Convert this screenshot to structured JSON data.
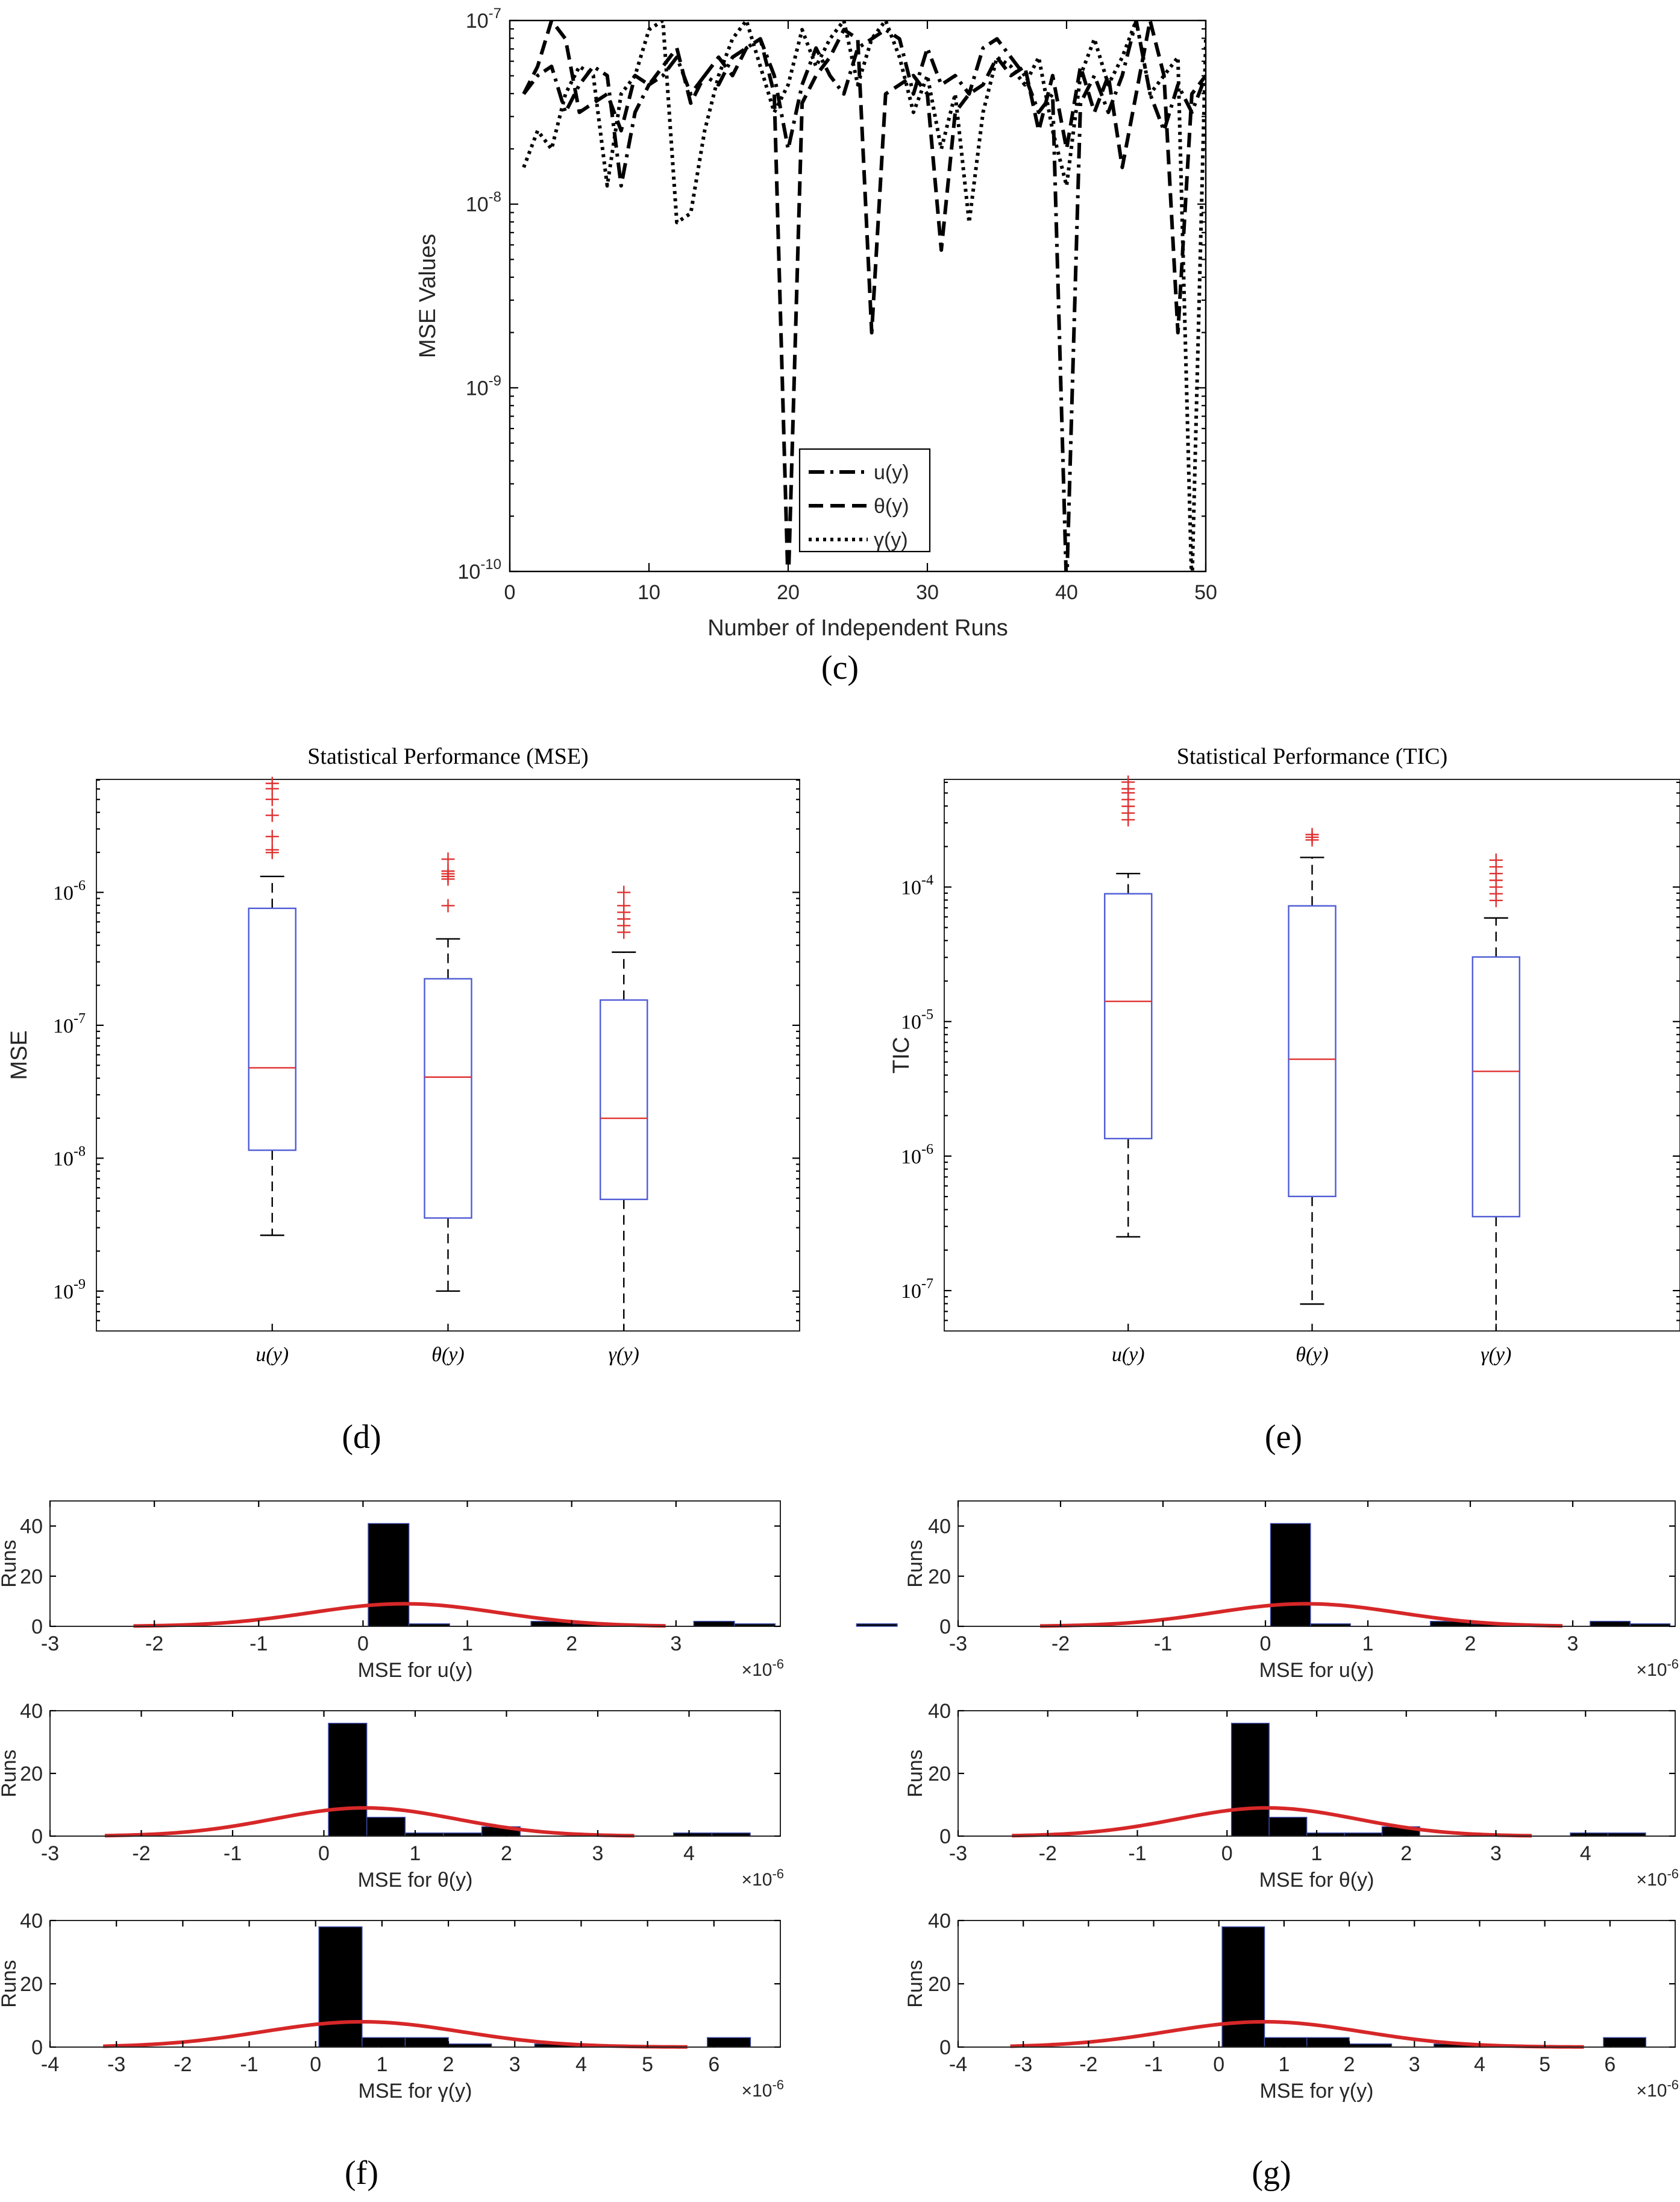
{
  "captions": {
    "c": "(c)",
    "d": "(d)",
    "e": "(e)",
    "f": "(f)",
    "g": "(g)"
  },
  "colors": {
    "box": "#4f5bd5",
    "median": "#e03030",
    "outlier": "#e03030",
    "fit": "#d62728",
    "bar": "#000000",
    "line": "#000000"
  },
  "chart_data": [
    {
      "id": "c",
      "type": "line",
      "xlabel": "Number of Independent Runs",
      "ylabel": "MSE Values",
      "xlim": [
        0,
        50
      ],
      "ylim_log10": [
        -10,
        -7
      ],
      "xticks": [
        0,
        10,
        20,
        30,
        40,
        50
      ],
      "ytick_labels": [
        "10-10",
        "10-9",
        "10-8",
        "10-7"
      ],
      "legend_position": "lower-middle",
      "series": [
        {
          "name": "u(y)",
          "style": "dashdot",
          "log10_values": [
            -7.4,
            -7.3,
            -7.25,
            -7.5,
            -7.35,
            -7.25,
            -7.3,
            -7.9,
            -7.5,
            -7.35,
            -7.3,
            -7.2,
            -7.4,
            -7.3,
            -7.35,
            -7.2,
            -7.15,
            -7.1,
            -7.3,
            -7.7,
            -7.35,
            -7.15,
            -7.3,
            -7.4,
            -7.15,
            -7.1,
            -7.05,
            -7.1,
            -7.4,
            -7.15,
            -7.35,
            -7.3,
            -7.4,
            -7.15,
            -7.1,
            -7.2,
            -7.3,
            -7.5,
            -7.4,
            -10.1,
            -7.45,
            -7.3,
            -7.5,
            -7.3,
            -7.0,
            -7.4,
            -7.6,
            -7.35,
            -7.5,
            -7.3
          ]
        },
        {
          "name": "θ(y)",
          "style": "dash",
          "log10_values": [
            -7.4,
            -7.25,
            -7.0,
            -7.1,
            -7.5,
            -7.45,
            -7.4,
            -7.6,
            -7.3,
            -7.35,
            -7.25,
            -7.15,
            -7.45,
            -7.3,
            -7.2,
            -7.3,
            -7.15,
            -7.1,
            -7.4,
            -10.1,
            -7.45,
            -7.3,
            -7.2,
            -7.05,
            -7.1,
            -8.7,
            -7.4,
            -7.35,
            -7.3,
            -7.4,
            -8.25,
            -7.5,
            -7.4,
            -7.35,
            -7.2,
            -7.3,
            -7.25,
            -7.6,
            -7.3,
            -7.7,
            -7.25,
            -7.5,
            -7.3,
            -7.8,
            -7.4,
            -7.0,
            -7.3,
            -8.7,
            -7.4,
            -7.3
          ]
        },
        {
          "name": "γ(y)",
          "style": "dot",
          "log10_values": [
            -7.8,
            -7.6,
            -7.7,
            -7.4,
            -7.25,
            -7.3,
            -7.9,
            -7.4,
            -7.3,
            -7.05,
            -7.0,
            -8.1,
            -8.05,
            -7.6,
            -7.3,
            -7.1,
            -7.0,
            -7.25,
            -7.5,
            -7.35,
            -7.05,
            -7.25,
            -7.1,
            -7.0,
            -7.35,
            -7.1,
            -7.0,
            -7.2,
            -7.5,
            -7.3,
            -7.7,
            -7.4,
            -8.1,
            -7.5,
            -7.2,
            -7.25,
            -7.35,
            -7.2,
            -7.6,
            -7.9,
            -7.3,
            -7.1,
            -7.35,
            -7.2,
            -7.0,
            -7.4,
            -7.3,
            -7.2,
            -10.1,
            -7.1
          ]
        }
      ]
    },
    {
      "id": "d",
      "type": "box",
      "title": "Statistical Performance (MSE)",
      "ylabel": "MSE",
      "ylim_log10": [
        -9.3,
        -5.15
      ],
      "ytick_labels": [
        "10-9",
        "10-8",
        "10-7",
        "10-6"
      ],
      "categories": [
        "u(y)",
        "θ(y)",
        "γ(y)"
      ],
      "boxes": [
        {
          "q1": -7.94,
          "median": -7.32,
          "q3": -6.12,
          "whisker_low": -8.58,
          "whisker_high": -5.88,
          "outliers": [
            -5.7,
            -5.68,
            -5.58,
            -5.42,
            -5.3,
            -5.22,
            -5.18
          ]
        },
        {
          "q1": -8.45,
          "median": -7.39,
          "q3": -6.65,
          "whisker_low": -9.0,
          "whisker_high": -6.35,
          "outliers": [
            -6.1,
            -5.9,
            -5.88,
            -5.86,
            -5.84,
            -5.75
          ]
        },
        {
          "q1": -8.31,
          "median": -7.7,
          "q3": -6.81,
          "whisker_low": -9.3,
          "whisker_high": -6.45,
          "outliers": [
            -6.3,
            -6.25,
            -6.2,
            -6.15,
            -6.1,
            -6.0
          ]
        }
      ]
    },
    {
      "id": "e",
      "type": "box",
      "title": "Statistical Performance (TIC)",
      "ylabel": "TIC",
      "ylim_log10": [
        -7.3,
        -3.2
      ],
      "ytick_labels": [
        "10-7",
        "10-6",
        "10-5",
        "10-4"
      ],
      "categories": [
        "u(y)",
        "θ(y)",
        "γ(y)"
      ],
      "boxes": [
        {
          "q1": -5.87,
          "median": -4.85,
          "q3": -4.05,
          "whisker_low": -6.6,
          "whisker_high": -3.9,
          "outliers": [
            -3.5,
            -3.45,
            -3.4,
            -3.35,
            -3.3,
            -3.27,
            -3.22
          ]
        },
        {
          "q1": -6.3,
          "median": -5.28,
          "q3": -4.14,
          "whisker_low": -7.1,
          "whisker_high": -3.78,
          "outliers": [
            -3.65,
            -3.63,
            -3.61
          ]
        },
        {
          "q1": -6.45,
          "median": -5.37,
          "q3": -4.52,
          "whisker_low": -7.3,
          "whisker_high": -4.23,
          "outliers": [
            -4.1,
            -4.05,
            -4.0,
            -3.95,
            -3.9,
            -3.85,
            -3.8
          ]
        }
      ]
    },
    {
      "id": "f",
      "type": "histogram",
      "exponent_label": "×10-6",
      "ylabel": "Runs",
      "panels": [
        {
          "xlabel": "MSE for u(y)",
          "xlim": [
            -3,
            4
          ],
          "xticks": [
            -3,
            -2,
            -1,
            0,
            1,
            2,
            3
          ],
          "ylim": [
            0,
            50
          ],
          "yticks": [
            0,
            20,
            40
          ],
          "bin_start": 0.05,
          "bin_width": 0.39,
          "counts": [
            41,
            1,
            0,
            0,
            2,
            1,
            0,
            0,
            2,
            1,
            0,
            0,
            1
          ],
          "fit": {
            "mean": 0.4,
            "sd": 0.9,
            "peak": 9,
            "from": -2.2,
            "to": 2.9
          }
        },
        {
          "xlabel": "MSE for θ(y)",
          "xlim": [
            -3,
            5
          ],
          "xticks": [
            -3,
            -2,
            -1,
            0,
            1,
            2,
            3,
            4
          ],
          "ylim": [
            0,
            40
          ],
          "yticks": [
            0,
            20,
            40
          ],
          "bin_start": 0.05,
          "bin_width": 0.42,
          "counts": [
            36,
            6,
            1,
            1,
            3,
            0,
            0,
            0,
            0,
            1,
            1
          ],
          "fit": {
            "mean": 0.45,
            "sd": 1.0,
            "peak": 9,
            "from": -2.4,
            "to": 3.4
          }
        },
        {
          "xlabel": "MSE for γ(y)",
          "xlim": [
            -4,
            7
          ],
          "xticks": [
            -4,
            -3,
            -2,
            -1,
            0,
            1,
            2,
            3,
            4,
            5,
            6
          ],
          "ylim": [
            0,
            40
          ],
          "yticks": [
            0,
            20,
            40
          ],
          "bin_start": 0.05,
          "bin_width": 0.65,
          "counts": [
            38,
            3,
            3,
            1,
            0,
            1,
            0,
            0,
            0,
            3
          ],
          "fit": {
            "mean": 0.7,
            "sd": 1.5,
            "peak": 8,
            "from": -3.2,
            "to": 5.6
          }
        }
      ]
    },
    {
      "id": "g",
      "type": "histogram",
      "exponent_label": "×10-6",
      "ylabel": "Runs",
      "panels": [
        {
          "xlabel": "MSE for u(y)",
          "xlim": [
            -3,
            4
          ],
          "xticks": [
            -3,
            -2,
            -1,
            0,
            1,
            2,
            3
          ],
          "ylim": [
            0,
            50
          ],
          "yticks": [
            0,
            20,
            40
          ],
          "bin_start": 0.05,
          "bin_width": 0.39,
          "counts": [
            41,
            1,
            0,
            0,
            2,
            1,
            0,
            0,
            2,
            1,
            0,
            0,
            1
          ],
          "fit": {
            "mean": 0.4,
            "sd": 0.9,
            "peak": 9,
            "from": -2.2,
            "to": 2.9
          }
        },
        {
          "xlabel": "MSE for θ(y)",
          "xlim": [
            -3,
            5
          ],
          "xticks": [
            -3,
            -2,
            -1,
            0,
            1,
            2,
            3,
            4
          ],
          "ylim": [
            0,
            40
          ],
          "yticks": [
            0,
            20,
            40
          ],
          "bin_start": 0.05,
          "bin_width": 0.42,
          "counts": [
            36,
            6,
            1,
            1,
            3,
            0,
            0,
            0,
            0,
            1,
            1
          ],
          "fit": {
            "mean": 0.45,
            "sd": 1.0,
            "peak": 9,
            "from": -2.4,
            "to": 3.4
          }
        },
        {
          "xlabel": "MSE for γ(y)",
          "xlim": [
            -4,
            7
          ],
          "xticks": [
            -4,
            -3,
            -2,
            -1,
            0,
            1,
            2,
            3,
            4,
            5,
            6
          ],
          "ylim": [
            0,
            40
          ],
          "yticks": [
            0,
            20,
            40
          ],
          "bin_start": 0.05,
          "bin_width": 0.65,
          "counts": [
            38,
            3,
            3,
            1,
            0,
            1,
            0,
            0,
            0,
            3
          ],
          "fit": {
            "mean": 0.7,
            "sd": 1.5,
            "peak": 8,
            "from": -3.2,
            "to": 5.6
          }
        }
      ]
    }
  ]
}
